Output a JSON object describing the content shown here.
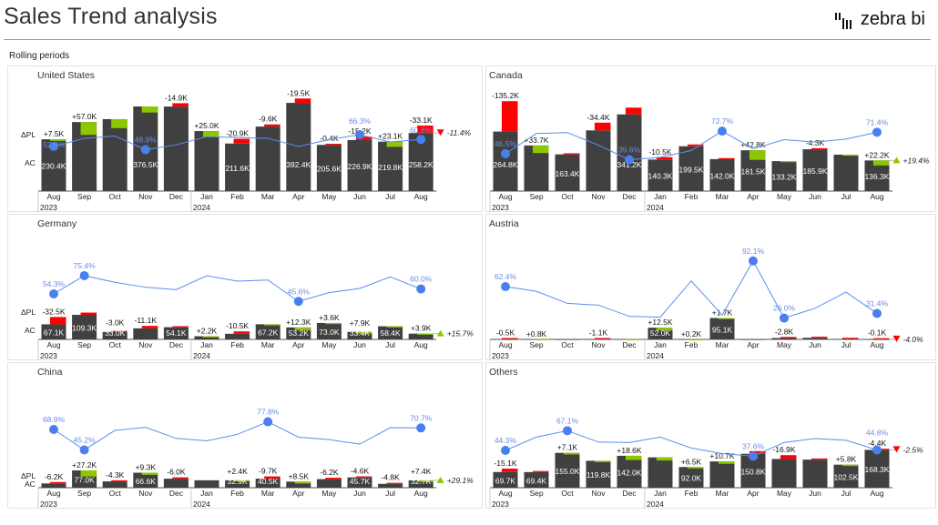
{
  "header": {
    "title": "Sales Trend analysis",
    "logo_text": "zebra bi",
    "subtitle": "Rolling periods"
  },
  "colors": {
    "bar": "#404040",
    "positive": "#8cc800",
    "negative": "#ff0000",
    "line": "#5b8def",
    "dot": "#4a7ff0",
    "pct_label": "#6a8ce8"
  },
  "row_labels": {
    "delta": "ΔPL",
    "actual": "AC"
  },
  "chart_data": [
    {
      "type": "bar+line",
      "title": "United States",
      "categories": [
        "Aug",
        "Sep",
        "Oct",
        "Nov",
        "Dec",
        "Jan",
        "Feb",
        "Mar",
        "Apr",
        "May",
        "Jun",
        "Jul",
        "Aug"
      ],
      "years": [
        "2023",
        "2024"
      ],
      "ac": [
        230.4,
        307,
        320,
        376.5,
        376,
        267,
        211.6,
        287,
        392.4,
        205.6,
        226.9,
        219.8,
        258.2
      ],
      "ac_labels": [
        "230.4K",
        "",
        "",
        "376.5K",
        "",
        "",
        "211.6K",
        "",
        "392.4K",
        "205.6K",
        "226.9K",
        "219.8K",
        "258.2K"
      ],
      "delta": [
        7.5,
        57,
        40,
        27,
        -14.9,
        25,
        -20.9,
        -9.6,
        -19.5,
        -0.4,
        -15.2,
        23.1,
        -33.1
      ],
      "delta_labels": [
        "+7.5K",
        "+57.0K",
        "",
        "",
        "-14.9K",
        "+25.0K",
        "-20.9K",
        "-9.6K",
        "-19.5K",
        "-0.4K",
        "-15.2K",
        "+23.1K",
        "-33.1K"
      ],
      "pct": [
        52.6,
        62,
        64.8,
        48.9,
        54.5,
        64,
        63,
        62,
        52.6,
        60.6,
        66.3,
        57.8,
        60.8
      ],
      "pct_labels": [
        "52.6%",
        "",
        "",
        "48.9%",
        "",
        "",
        "",
        "",
        "",
        "",
        "66.3%",
        "",
        "60.8%"
      ],
      "total": "-11.4%",
      "total_sign": "negative"
    },
    {
      "type": "bar+line",
      "title": "Canada",
      "categories": [
        "Aug",
        "Sep",
        "Oct",
        "Nov",
        "Dec",
        "Jan",
        "Feb",
        "Mar",
        "Apr",
        "May",
        "Jun",
        "Jul",
        "Aug"
      ],
      "years": [
        "2023",
        "2024"
      ],
      "ac": [
        264.8,
        203,
        163.4,
        270,
        341.2,
        140.3,
        199.5,
        142.0,
        181.5,
        133.2,
        185.9,
        162,
        136.3
      ],
      "ac_labels": [
        "264.8K",
        "",
        "163.4K",
        "",
        "341.2K",
        "140.3K",
        "199.5K",
        "142.0K",
        "181.5K",
        "133.2K",
        "185.9K",
        "",
        "136.3K"
      ],
      "delta": [
        -135.2,
        33.7,
        -3,
        -34.4,
        -30,
        -10.5,
        -8,
        -3,
        42.8,
        4,
        -4.3,
        4,
        22.2
      ],
      "delta_labels": [
        "-135.2K",
        "+33.7K",
        "",
        "-34.4K",
        "",
        "-10.5K",
        "",
        "",
        "+42.8K",
        "",
        "-4.3K",
        "",
        "+22.2K"
      ],
      "pct": [
        46.5,
        69.9,
        71,
        56.5,
        39.6,
        42.4,
        50.2,
        72.7,
        52.3,
        62.8,
        60,
        63.5,
        71.4
      ],
      "pct_labels": [
        "46.5%",
        "",
        "",
        "",
        "39.6%",
        "",
        "",
        "72.7%",
        "",
        "",
        "",
        "",
        "71.4%"
      ],
      "total": "+19.4%",
      "total_sign": "positive"
    },
    {
      "type": "bar+line",
      "title": "Germany",
      "categories": [
        "Aug",
        "Sep",
        "Oct",
        "Nov",
        "Dec",
        "Jan",
        "Feb",
        "Mar",
        "Apr",
        "May",
        "Jun",
        "Jul",
        "Aug"
      ],
      "years": [
        "2023",
        "2024"
      ],
      "ac": [
        67.1,
        109.3,
        33.0,
        49,
        54.1,
        14,
        25,
        67.2,
        53.2,
        73.0,
        33.4,
        58.4,
        25.6
      ],
      "ac_labels": [
        "67.1K",
        "109.3K",
        "33.0K",
        "",
        "54.1K",
        "",
        "",
        "67.2K",
        "53.2K",
        "73.0K",
        "33.4K",
        "58.4K",
        ""
      ],
      "delta": [
        -32.5,
        -10,
        -3.0,
        -11.1,
        -3,
        2.2,
        -10.5,
        3,
        12.3,
        3.6,
        7.9,
        3,
        3.9
      ],
      "delta_labels": [
        "-32.5K",
        "",
        "-3.0K",
        "-11.1K",
        "",
        "+2.2K",
        "-10.5K",
        "",
        "+12.3K",
        "+3.6K",
        "+7.9K",
        "",
        "+3.9K"
      ],
      "pct": [
        54.3,
        75.4,
        67.7,
        62,
        59.2,
        75.3,
        69,
        70.4,
        45.6,
        55.7,
        60.6,
        74,
        60.0
      ],
      "pct_labels": [
        "54.3%",
        "75.4%",
        "",
        "",
        "",
        "",
        "",
        "",
        "45.6%",
        "",
        "",
        "",
        "60.0%"
      ],
      "total": "+15.7%",
      "total_sign": "positive"
    },
    {
      "type": "bar+line",
      "title": "Austria",
      "categories": [
        "Aug",
        "Sep",
        "Oct",
        "Nov",
        "Dec",
        "Jan",
        "Feb",
        "Mar",
        "Apr",
        "May",
        "Jun",
        "Jul",
        "Aug"
      ],
      "years": [
        "2023",
        "2024"
      ],
      "ac": [
        1,
        1,
        0,
        1,
        1,
        52.0,
        0.5,
        95.1,
        0,
        6,
        7,
        2,
        0.3
      ],
      "ac_labels": [
        "",
        "",
        "",
        "",
        "",
        "52.0K",
        "",
        "95.1K",
        "",
        "",
        "",
        "",
        ""
      ],
      "delta": [
        -0.5,
        0.8,
        0,
        -1.1,
        0.3,
        12.5,
        0.2,
        1.7,
        0,
        -2.8,
        -1,
        -1,
        -0.1
      ],
      "delta_labels": [
        "-0.5K",
        "+0.8K",
        "",
        "-1.1K",
        "",
        "+12.5K",
        "+0.2K",
        "+1.7K",
        "",
        "-2.8K",
        "",
        "",
        "-0.1K"
      ],
      "pct": [
        62.4,
        57,
        43,
        41,
        28,
        27,
        69,
        29.6,
        92.1,
        26.0,
        37.3,
        56,
        31.4
      ],
      "pct_labels": [
        "62.4%",
        "",
        "",
        "",
        "",
        "",
        "",
        "",
        "92.1%",
        "26.0%",
        "",
        "",
        "31.4%"
      ],
      "total": "-4.0%",
      "total_sign": "negative"
    },
    {
      "type": "bar+line",
      "title": "China",
      "categories": [
        "Aug",
        "Sep",
        "Oct",
        "Nov",
        "Dec",
        "Jan",
        "Feb",
        "Mar",
        "Apr",
        "May",
        "Jun",
        "Jul",
        "Aug"
      ],
      "years": [
        "2023",
        "2024"
      ],
      "ac": [
        19,
        77.0,
        28,
        66.6,
        40,
        33,
        32.9,
        40.5,
        27,
        38,
        45.7,
        17,
        32.7
      ],
      "ac_labels": [
        "",
        "77.0K",
        "",
        "66.6K",
        "",
        "",
        "32.9K",
        "40.5K",
        "",
        "",
        "45.7K",
        "",
        "32.7K"
      ],
      "delta": [
        -6.2,
        27.2,
        -4.3,
        9.3,
        -6.0,
        0,
        2.4,
        -9.7,
        8.5,
        -6.2,
        -4.6,
        -4.8,
        7.4
      ],
      "delta_labels": [
        "-6.2K",
        "+27.2K",
        "-4.3K",
        "+9.3K",
        "-6.0K",
        "",
        "+2.4K",
        "-9.7K",
        "+8.5K",
        "-6.2K",
        "-4.6K",
        "-4.8K",
        "+7.4K"
      ],
      "pct": [
        68.9,
        45.2,
        67.8,
        71.4,
        58.6,
        55.8,
        63.2,
        77.8,
        60,
        57.2,
        51.9,
        71,
        70.7
      ],
      "pct_labels": [
        "68.9%",
        "45.2%",
        "",
        "",
        "",
        "",
        "",
        "77.8%",
        "",
        "",
        "",
        "",
        "70.7%"
      ],
      "total": "+29.1%",
      "total_sign": "positive"
    },
    {
      "type": "bar+line",
      "title": "Others",
      "categories": [
        "Aug",
        "Sep",
        "Oct",
        "Nov",
        "Dec",
        "Jan",
        "Feb",
        "Mar",
        "Apr",
        "May",
        "Jun",
        "Jul",
        "Aug"
      ],
      "years": [
        "2023",
        "2024"
      ],
      "ac": [
        69.7,
        69.4,
        155.0,
        119.8,
        142.0,
        135,
        92.0,
        117,
        150.8,
        128,
        125,
        102.5,
        168.3
      ],
      "ac_labels": [
        "69.7K",
        "69.4K",
        "155.0K",
        "119.8K",
        "142.0K",
        "",
        "92.0K",
        "",
        "150.8K",
        "",
        "",
        "102.5K",
        "168.3K"
      ],
      "delta": [
        -15.1,
        -3,
        7.1,
        6,
        18.6,
        14,
        6.5,
        10.7,
        -12,
        -16.9,
        -5,
        5.8,
        -4.4
      ],
      "delta_labels": [
        "-15.1K",
        "",
        "+7.1K",
        "",
        "+18.6K",
        "",
        "+6.5K",
        "+10.7K",
        "",
        "-16.9K",
        "",
        "+5.8K",
        "-4.4K"
      ],
      "pct": [
        44.3,
        59.7,
        67.1,
        54,
        53.4,
        59.7,
        47,
        40.6,
        37.6,
        53.4,
        58,
        56,
        44.8
      ],
      "pct_labels": [
        "44.3%",
        "",
        "67.1%",
        "",
        "",
        "",
        "",
        "",
        "37.6%",
        "",
        "",
        "",
        "44.8%"
      ],
      "total": "-2.5%",
      "total_sign": "negative"
    }
  ]
}
